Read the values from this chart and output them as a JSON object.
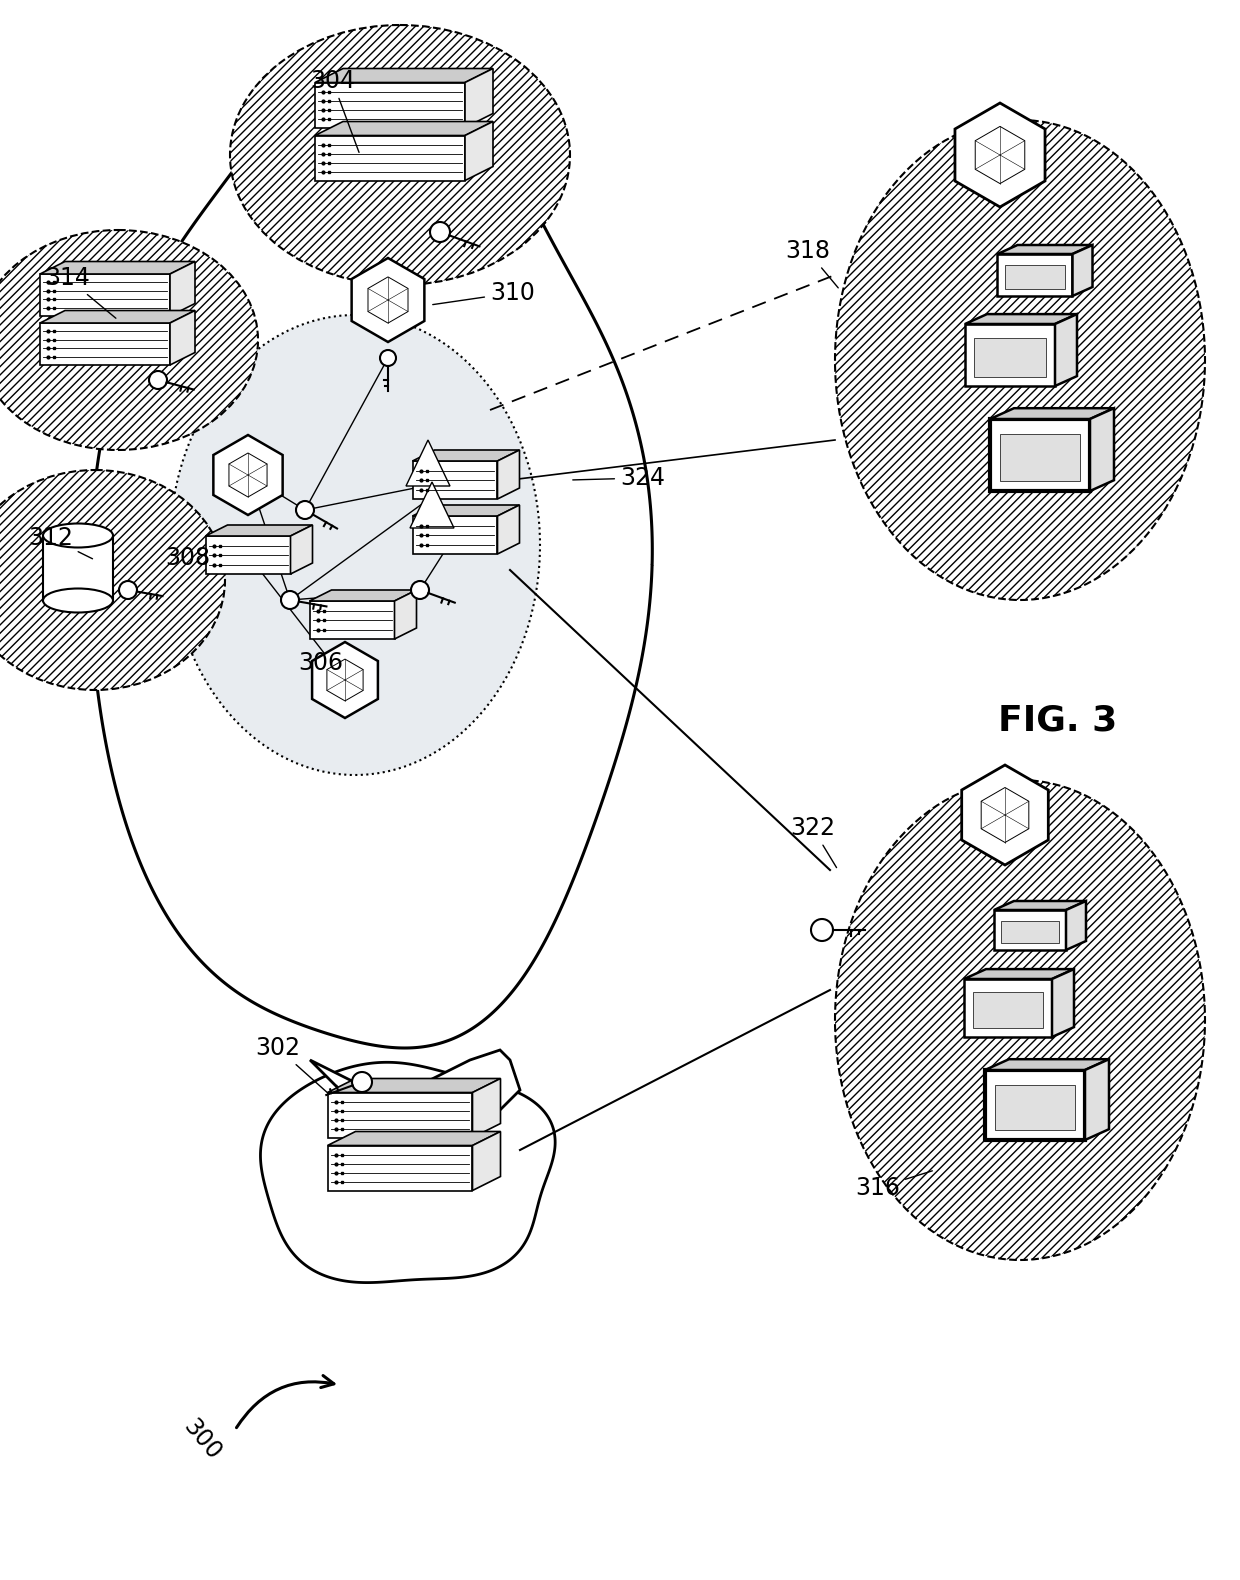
{
  "background_color": "#ffffff",
  "fig_label": "FIG. 3",
  "ref_300": "300",
  "labels": [
    "302",
    "304",
    "306",
    "308",
    "310",
    "312",
    "314",
    "316",
    "318",
    "322",
    "324"
  ],
  "inner_fill": "#e8ecf0",
  "hatch_pattern": "////",
  "outer_lw": 2.0,
  "inner_lw": 1.5
}
